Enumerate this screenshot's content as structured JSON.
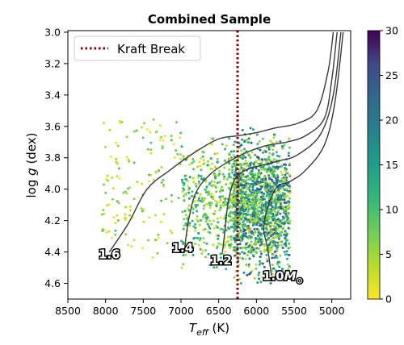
{
  "chart_data": {
    "type": "scatter",
    "title": "Combined Sample",
    "xlabel": "T_eff (K)",
    "ylabel": "log g (dex)",
    "xlim": [
      8500,
      4750
    ],
    "ylim": [
      4.7,
      3.0
    ],
    "x_ticks": [
      "8500",
      "8000",
      "7500",
      "7000",
      "6500",
      "6000",
      "5500",
      "5000"
    ],
    "y_ticks": [
      "3.0",
      "3.2",
      "3.4",
      "3.6",
      "3.8",
      "4.0",
      "4.2",
      "4.4",
      "4.6"
    ],
    "x_tick_values": [
      8500,
      8000,
      7500,
      7000,
      6500,
      6000,
      5500,
      5000
    ],
    "y_tick_values": [
      3.0,
      3.2,
      3.4,
      3.6,
      3.8,
      4.0,
      4.2,
      4.4,
      4.6
    ],
    "grid": false,
    "legend": {
      "placement": "top-left",
      "entries": [
        {
          "label": "Kraft Break",
          "style": "dotted",
          "color": "#8b0000"
        }
      ]
    },
    "kraft_break_teff": 6250,
    "colorbar": {
      "min": 0,
      "max": 30,
      "ticks": [
        "0",
        "5",
        "10",
        "15",
        "20",
        "25",
        "30"
      ],
      "colormap": "viridis_r"
    },
    "tracks": [
      {
        "label": "1.6",
        "points": [
          [
            7950,
            4.4
          ],
          [
            7700,
            4.22
          ],
          [
            7450,
            4.0
          ],
          [
            7150,
            3.88
          ],
          [
            6800,
            3.76
          ],
          [
            6500,
            3.68
          ],
          [
            6250,
            3.66
          ],
          [
            6000,
            3.64
          ],
          [
            5750,
            3.61
          ],
          [
            5450,
            3.58
          ],
          [
            5200,
            3.5
          ],
          [
            5050,
            3.25
          ],
          [
            4980,
            3.0
          ]
        ]
      },
      {
        "label": "1.4",
        "points": [
          [
            6950,
            4.37
          ],
          [
            6900,
            4.2
          ],
          [
            6800,
            4.02
          ],
          [
            6600,
            3.9
          ],
          [
            6350,
            3.82
          ],
          [
            6100,
            3.76
          ],
          [
            5850,
            3.72
          ],
          [
            5600,
            3.7
          ],
          [
            5350,
            3.66
          ],
          [
            5100,
            3.55
          ],
          [
            5000,
            3.3
          ],
          [
            4930,
            3.0
          ]
        ]
      },
      {
        "label": "1.2",
        "points": [
          [
            6450,
            4.4
          ],
          [
            6420,
            4.28
          ],
          [
            6380,
            4.1
          ],
          [
            6300,
            3.95
          ],
          [
            6150,
            3.88
          ],
          [
            5950,
            3.85
          ],
          [
            5700,
            3.82
          ],
          [
            5450,
            3.78
          ],
          [
            5150,
            3.65
          ],
          [
            4980,
            3.4
          ],
          [
            4880,
            3.0
          ]
        ]
      },
      {
        "label": "1.0M☉",
        "points": [
          [
            5800,
            4.55
          ],
          [
            5850,
            4.38
          ],
          [
            5900,
            4.22
          ],
          [
            5750,
            4.0
          ],
          [
            5550,
            3.95
          ],
          [
            5350,
            3.88
          ],
          [
            5100,
            3.72
          ],
          [
            4960,
            3.45
          ],
          [
            4850,
            3.0
          ]
        ]
      }
    ],
    "mass_labels": [
      {
        "text": "1.6",
        "teff": 7950,
        "logg": 4.44
      },
      {
        "text": "1.4",
        "teff": 6980,
        "logg": 4.4
      },
      {
        "text": "1.2",
        "teff": 6470,
        "logg": 4.48
      },
      {
        "text": "1.0",
        "sub": "M",
        "sym": "⊙",
        "teff": 5650,
        "logg": 4.58
      }
    ],
    "series": [
      {
        "region": "hot-sparse",
        "teff_range": [
          7000,
          8050
        ],
        "logg_range": [
          3.55,
          4.45
        ],
        "count": 140,
        "value_range": [
          0,
          10
        ]
      },
      {
        "region": "f-stars",
        "teff_range": [
          6300,
          7000
        ],
        "logg_range": [
          3.6,
          4.55
        ],
        "count": 420,
        "value_range": [
          2,
          16
        ]
      },
      {
        "region": "cool-dense",
        "teff_range": [
          5550,
          6300
        ],
        "logg_range": [
          3.55,
          4.6
        ],
        "count": 1500,
        "value_range": [
          3,
          26
        ]
      }
    ]
  }
}
